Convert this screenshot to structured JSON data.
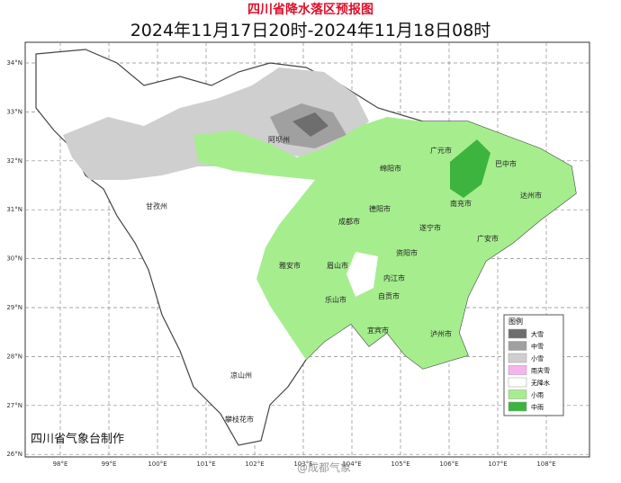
{
  "header": {
    "title": "四川省降水落区预报图",
    "subtitle": "2024年11月17日20时-2024年11月18日08时"
  },
  "axes": {
    "lat": [
      "34°N",
      "33°N",
      "32°N",
      "31°N",
      "30°N",
      "29°N",
      "28°N",
      "27°N",
      "26°N"
    ],
    "lon": [
      "98°E",
      "99°E",
      "100°E",
      "101°E",
      "102°E",
      "103°E",
      "104°E",
      "105°E",
      "106°E",
      "107°E",
      "108°E"
    ]
  },
  "cities": [
    "阿坝州",
    "广元市",
    "巴中市",
    "绵阳市",
    "甘孜州",
    "德阳市",
    "南充市",
    "达州市",
    "成都市",
    "遂宁市",
    "广安市",
    "资阳市",
    "眉山市",
    "雅安市",
    "内江市",
    "乐山市",
    "自贡市",
    "宜宾市",
    "泸州市",
    "凉山州",
    "攀枝花市"
  ],
  "legend": {
    "title": "图例",
    "items": [
      {
        "label": "大雪",
        "color": "#6e6e6e"
      },
      {
        "label": "中雪",
        "color": "#a0a0a0"
      },
      {
        "label": "小雪",
        "color": "#cfcfcf"
      },
      {
        "label": "雨夹雪",
        "color": "#f7b3f0"
      },
      {
        "label": "无降水",
        "color": "#ffffff"
      },
      {
        "label": "小雨",
        "color": "#a6ed8e"
      },
      {
        "label": "中雨",
        "color": "#3db43d"
      }
    ]
  },
  "footer": "四川省气象台制作",
  "watermark": "@成都气象"
}
